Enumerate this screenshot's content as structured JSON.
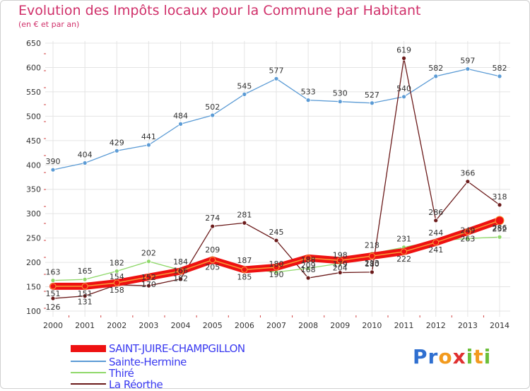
{
  "title": "Evolution des Impôts locaux pour la Commune par Habitant",
  "subtitle": "(en € et par an)",
  "logo": {
    "text": "Proxiti",
    "letters": [
      "P",
      "r",
      "o",
      "x",
      "i",
      "t",
      "i"
    ],
    "colors": [
      "#2f6fd0",
      "#2f6fd0",
      "#f29a1e",
      "#e03030",
      "#6cbf3a",
      "#f29a1e",
      "#6cbf3a"
    ]
  },
  "chart_data": {
    "type": "line",
    "x": [
      "2000",
      "2001",
      "2002",
      "2003",
      "2004",
      "2005",
      "2006",
      "2007",
      "2008",
      "2009",
      "2010",
      "2011",
      "2012",
      "2013",
      "2014"
    ],
    "yticks": [
      "650",
      "600",
      "550",
      "500",
      "450",
      "400",
      "350",
      "300",
      "250",
      "200",
      "150",
      "100"
    ],
    "ylim": [
      100,
      650
    ],
    "grid": true,
    "legend": "bottom-left",
    "series": [
      {
        "name": "SAINT-JUIRE-CHAMPGILLON",
        "color": "#ee1111",
        "values": [
          151,
          151,
          158,
          170,
          182,
          205,
          185,
          190,
          209,
          204,
          213,
          222,
          241,
          263,
          286
        ],
        "labels": [
          "151",
          "151",
          "158",
          "170",
          "182",
          "205",
          "185",
          "190",
          "209",
          "204",
          "213",
          "222",
          "241",
          "263",
          "286"
        ]
      },
      {
        "name": "Sainte-Hermine",
        "color": "#5b9bd5",
        "values": [
          390,
          404,
          429,
          441,
          484,
          502,
          545,
          577,
          533,
          530,
          527,
          540,
          582,
          597,
          582
        ],
        "labels": [
          "390",
          "404",
          "429",
          "441",
          "484",
          "502",
          "545",
          "577",
          "533",
          "530",
          "527",
          "540",
          "582",
          "597",
          "582"
        ]
      },
      {
        "name": "Thiré",
        "color": "#8fd86a",
        "values": [
          163,
          165,
          182,
          202,
          184,
          209,
          187,
          180,
          188,
          198,
          218,
          231,
          244,
          249,
          252
        ],
        "labels": [
          "163",
          "165",
          "182",
          "202",
          "184",
          "209",
          "187",
          "180",
          "188",
          "198",
          "218",
          "231",
          "244",
          "249",
          "252"
        ]
      },
      {
        "name": "La Réorthe",
        "color": "#6b1a1a",
        "values": [
          126,
          131,
          154,
          152,
          166,
          274,
          281,
          245,
          168,
          179,
          180,
          619,
          286,
          366,
          318
        ],
        "labels": [
          "126",
          "131",
          "154",
          "152",
          "166",
          "274",
          "281",
          "245",
          "168",
          "179",
          "180",
          "619",
          "286",
          "366",
          "318"
        ]
      }
    ]
  }
}
